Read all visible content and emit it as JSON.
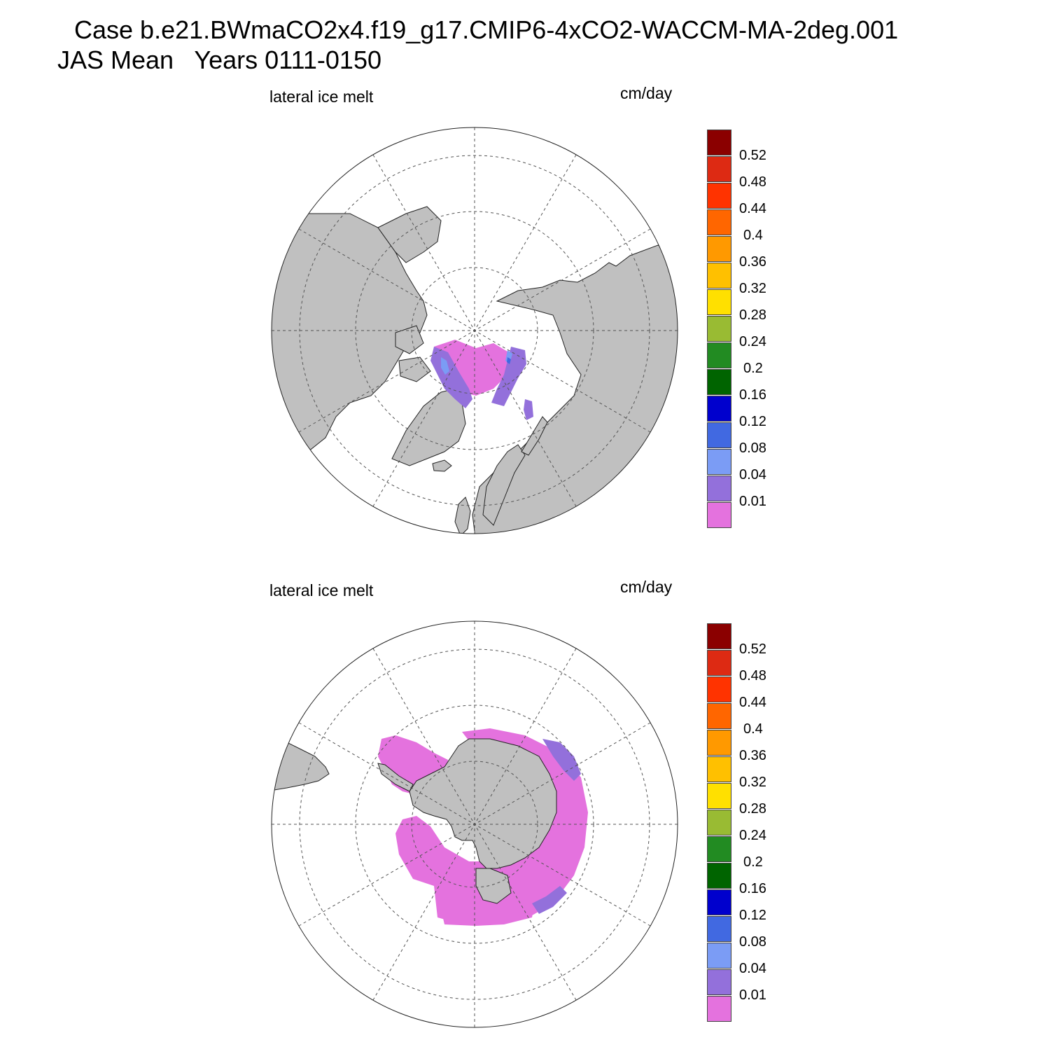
{
  "figure": {
    "title_line1": "Case b.e21.BWmaCO2x4.f19_g17.CMIP6-4xCO2-WACCM-MA-2deg.001",
    "title_line2": "JAS Mean   Years 0111-0150"
  },
  "panels": [
    {
      "variable_label": "lateral ice melt",
      "units_label": "cm/day",
      "projection": "north-polar-stereographic"
    },
    {
      "variable_label": "lateral ice melt",
      "units_label": "cm/day",
      "projection": "south-polar-stereographic"
    }
  ],
  "colorbar": {
    "levels": [
      "0.52",
      "0.48",
      "0.44",
      "0.4",
      "0.36",
      "0.32",
      "0.28",
      "0.24",
      "0.2",
      "0.16",
      "0.12",
      "0.08",
      "0.04",
      "0.01"
    ],
    "colors": [
      "#8b0000",
      "#dd2a13",
      "#ff3300",
      "#ff6600",
      "#ff9900",
      "#ffc000",
      "#ffe000",
      "#99bb33",
      "#228b22",
      "#006400",
      "#0000cd",
      "#4169e1",
      "#7b9cf5",
      "#9370db",
      "#e472de"
    ]
  },
  "map_colors": {
    "land": "#c0c0c0",
    "ocean": "#ffffff",
    "grid": "#555555"
  }
}
